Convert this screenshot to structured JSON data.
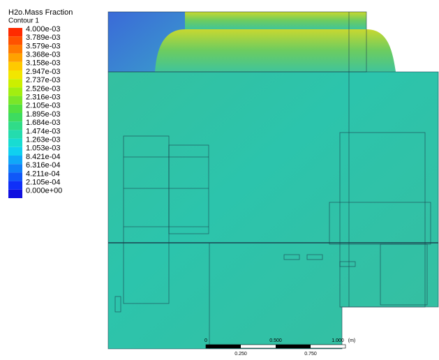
{
  "legend": {
    "title": "H2o.Mass Fraction",
    "subtitle": "Contour 1",
    "items": [
      {
        "label": "4.000e-03",
        "color": "#ff2a00"
      },
      {
        "label": "3.789e-03",
        "color": "#ff5200"
      },
      {
        "label": "3.579e-03",
        "color": "#ff7a00"
      },
      {
        "label": "3.368e-03",
        "color": "#ffa200"
      },
      {
        "label": "3.158e-03",
        "color": "#ffca00"
      },
      {
        "label": "2.947e-03",
        "color": "#f2e600"
      },
      {
        "label": "2.737e-03",
        "color": "#ccef00"
      },
      {
        "label": "2.526e-03",
        "color": "#a2ee10"
      },
      {
        "label": "2.316e-03",
        "color": "#7ae628"
      },
      {
        "label": "2.105e-03",
        "color": "#52e040"
      },
      {
        "label": "1.895e-03",
        "color": "#3ddc60"
      },
      {
        "label": "1.684e-03",
        "color": "#30dc88"
      },
      {
        "label": "1.474e-03",
        "color": "#24dcae"
      },
      {
        "label": "1.263e-03",
        "color": "#18dcd2"
      },
      {
        "label": "1.053e-03",
        "color": "#10d0f0"
      },
      {
        "label": "8.421e-04",
        "color": "#10a8f8"
      },
      {
        "label": "6.316e-04",
        "color": "#1080f8"
      },
      {
        "label": "4.211e-04",
        "color": "#1058f8"
      },
      {
        "label": "2.105e-04",
        "color": "#1030f8"
      },
      {
        "label": "0.000e+00",
        "color": "#1010e0"
      }
    ]
  },
  "scale_bar": {
    "top_labels": [
      "0",
      "0.500",
      "1.000"
    ],
    "unit": "(m)",
    "bottom_labels": [
      "0.250",
      "0.750"
    ]
  }
}
